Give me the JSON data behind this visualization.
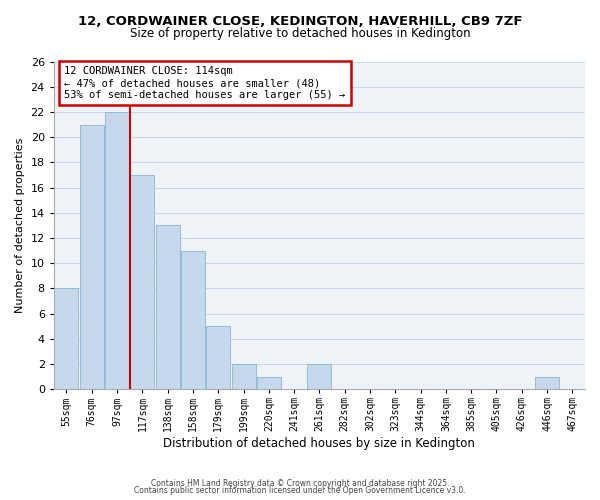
{
  "title_line1": "12, CORDWAINER CLOSE, KEDINGTON, HAVERHILL, CB9 7ZF",
  "title_line2": "Size of property relative to detached houses in Kedington",
  "xlabel": "Distribution of detached houses by size in Kedington",
  "ylabel": "Number of detached properties",
  "bar_labels": [
    "55sqm",
    "76sqm",
    "97sqm",
    "117sqm",
    "138sqm",
    "158sqm",
    "179sqm",
    "199sqm",
    "220sqm",
    "241sqm",
    "261sqm",
    "282sqm",
    "302sqm",
    "323sqm",
    "344sqm",
    "364sqm",
    "385sqm",
    "405sqm",
    "426sqm",
    "446sqm",
    "467sqm"
  ],
  "bar_heights": [
    8,
    21,
    22,
    17,
    13,
    11,
    5,
    2,
    1,
    0,
    2,
    0,
    0,
    0,
    0,
    0,
    0,
    0,
    0,
    1,
    0
  ],
  "bar_color": "#c6d9ec",
  "bar_edge_color": "#8ab4d4",
  "grid_color": "#c8d8e8",
  "vline_x_index": 3,
  "vline_color": "#cc0000",
  "annotation_title": "12 CORDWAINER CLOSE: 114sqm",
  "annotation_line2": "← 47% of detached houses are smaller (48)",
  "annotation_line3": "53% of semi-detached houses are larger (55) →",
  "annotation_box_color": "#ffffff",
  "annotation_box_edge": "#cc0000",
  "ylim": [
    0,
    26
  ],
  "yticks": [
    0,
    2,
    4,
    6,
    8,
    10,
    12,
    14,
    16,
    18,
    20,
    22,
    24,
    26
  ],
  "footnote1": "Contains HM Land Registry data © Crown copyright and database right 2025.",
  "footnote2": "Contains public sector information licensed under the Open Government Licence v3.0.",
  "bg_color": "#ffffff",
  "plot_bg_color": "#eef3f8"
}
